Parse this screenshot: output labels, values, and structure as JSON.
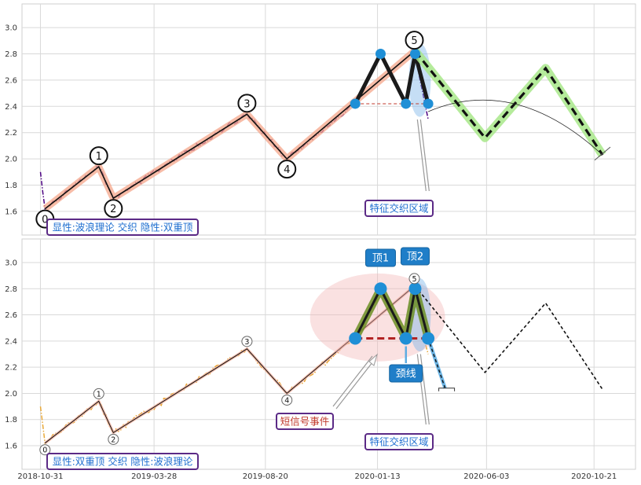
{
  "chart_data": [
    {
      "type": "line",
      "panel": "top",
      "ylim": [
        1.42,
        3.18
      ],
      "yticks": [
        "1.6",
        "1.8",
        "2.0",
        "2.2",
        "2.4",
        "2.6",
        "2.8",
        "3.0"
      ],
      "grid": true,
      "price_color": "#4B0082",
      "wave_points": [
        {
          "label": "0",
          "x": "2018-11-06",
          "y": 1.62
        },
        {
          "label": "1",
          "x": "2019-01-15",
          "y": 1.94
        },
        {
          "label": "2",
          "x": "2019-02-03",
          "y": 1.7
        },
        {
          "label": "3",
          "x": "2019-07-27",
          "y": 2.34
        },
        {
          "label": "4",
          "x": "2019-09-17",
          "y": 2.0
        },
        {
          "label": "5",
          "x": "2020-03-01",
          "y": 2.82
        }
      ],
      "double_top_points": [
        {
          "x": "2019-12-15",
          "y": 2.42
        },
        {
          "x": "2020-01-17",
          "y": 2.8
        },
        {
          "x": "2020-02-19",
          "y": 2.42
        },
        {
          "x": "2020-03-02",
          "y": 2.8
        },
        {
          "x": "2020-03-19",
          "y": 2.42
        }
      ],
      "projection_points": [
        {
          "x": "2020-03-02",
          "y": 2.82
        },
        {
          "x": "2020-06-01",
          "y": 2.16
        },
        {
          "x": "2020-08-19",
          "y": 2.69
        },
        {
          "x": "2020-11-01",
          "y": 2.03
        }
      ],
      "neckline": 2.42,
      "annotations": {
        "label_top_left": "显性:波浪理论 交织 隐性:双重顶",
        "zone_label": "特征交织区域"
      }
    },
    {
      "type": "line",
      "panel": "bottom",
      "ylim": [
        1.42,
        3.18
      ],
      "yticks": [
        "1.6",
        "1.8",
        "2.0",
        "2.2",
        "2.4",
        "2.6",
        "2.8",
        "3.0"
      ],
      "xticks": [
        "2018-10-31",
        "2019-03-28",
        "2019-08-20",
        "2020-01-13",
        "2020-06-03",
        "2020-10-21"
      ],
      "grid": true,
      "price_color": "#E8A838",
      "wave_points": [
        {
          "label": "0",
          "x": "2018-11-06",
          "y": 1.62
        },
        {
          "label": "1",
          "x": "2019-01-15",
          "y": 1.94
        },
        {
          "label": "2",
          "x": "2019-02-03",
          "y": 1.7
        },
        {
          "label": "3",
          "x": "2019-07-27",
          "y": 2.34
        },
        {
          "label": "4",
          "x": "2019-09-17",
          "y": 2.0
        },
        {
          "label": "5",
          "x": "2020-03-01",
          "y": 2.82
        }
      ],
      "double_top_points": [
        {
          "x": "2019-12-15",
          "y": 2.42
        },
        {
          "x": "2020-01-17",
          "y": 2.8
        },
        {
          "x": "2020-02-19",
          "y": 2.42
        },
        {
          "x": "2020-03-02",
          "y": 2.8
        },
        {
          "x": "2020-03-19",
          "y": 2.42
        }
      ],
      "projection_points": [
        {
          "x": "2020-03-02",
          "y": 2.82
        },
        {
          "x": "2020-06-01",
          "y": 2.16
        },
        {
          "x": "2020-08-19",
          "y": 2.69
        },
        {
          "x": "2020-11-01",
          "y": 2.03
        }
      ],
      "breakdown_points": [
        {
          "x": "2020-03-19",
          "y": 2.42
        },
        {
          "x": "2020-04-10",
          "y": 2.04
        }
      ],
      "neckline": 2.42,
      "annotations": {
        "label_top_left": "显性:双重顶 交织 隐性:波浪理论",
        "zone_label": "特征交织区域",
        "top1": "顶1",
        "top2": "顶2",
        "neck": "颈线",
        "short_signal": "短信号事件"
      }
    }
  ]
}
